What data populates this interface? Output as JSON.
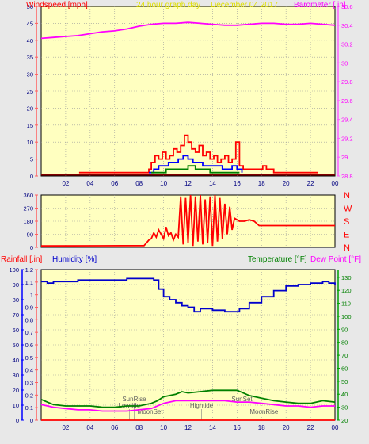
{
  "chart_data": [
    {
      "type": "line",
      "header": {
        "left": "Windspeed [mph]",
        "center": "24 hour graph day",
        "date": "December 04 2017",
        "right": "Barometer [ in]"
      },
      "x_ticks": [
        "02",
        "04",
        "06",
        "08",
        "10",
        "12",
        "14",
        "16",
        "18",
        "20",
        "22",
        "00"
      ],
      "y_left_ticks": [
        "0",
        "5",
        "10",
        "15",
        "20",
        "25",
        "30",
        "35",
        "40",
        "45",
        "50"
      ],
      "y_right_ticks": [
        "28.8",
        "29",
        "29.2",
        "29.4",
        "29.6",
        "29.8",
        "30",
        "30.2",
        "30.4",
        "30.6"
      ],
      "ylim_left": [
        0,
        50
      ],
      "ylim_right": [
        28.8,
        30.6
      ],
      "series": [
        {
          "role": "barometer",
          "color": "#ff00ff",
          "axis": "right",
          "x": [
            0,
            1,
            2,
            3,
            4,
            5,
            6,
            7,
            8,
            9,
            10,
            11,
            12,
            13,
            14,
            15,
            16,
            17,
            18,
            19,
            20,
            21,
            22,
            23,
            24
          ],
          "y": [
            30.26,
            30.27,
            30.28,
            30.29,
            30.31,
            30.33,
            30.34,
            30.36,
            30.39,
            30.41,
            30.42,
            30.42,
            30.43,
            30.42,
            30.41,
            30.4,
            30.4,
            30.41,
            30.42,
            30.42,
            30.41,
            30.41,
            30.42,
            30.41,
            30.4
          ]
        },
        {
          "role": "wind-gust",
          "color": "#ff0000",
          "axis": "left",
          "x": [
            3.1,
            8.8,
            9.0,
            9.3,
            9.6,
            9.9,
            10.2,
            10.5,
            10.8,
            11.1,
            11.4,
            11.7,
            12.0,
            12.3,
            12.6,
            12.9,
            13.2,
            13.5,
            13.8,
            14.1,
            14.4,
            14.7,
            15.0,
            15.3,
            15.6,
            15.9,
            16.2,
            16.5,
            17.8,
            18.1,
            18.4,
            19.0,
            19.6,
            20.2,
            22.6
          ],
          "y": [
            1,
            2,
            4,
            6,
            5,
            7,
            5,
            6,
            8,
            7,
            9,
            12,
            10,
            8,
            7,
            9,
            6,
            7,
            5,
            6,
            4,
            5,
            6,
            4,
            5,
            10,
            3,
            2,
            2,
            3,
            2,
            1,
            1,
            1,
            1
          ]
        },
        {
          "role": "wind-avg",
          "color": "#0000ff",
          "axis": "left",
          "x": [
            8.8,
            9.2,
            9.6,
            10.0,
            10.4,
            10.8,
            11.2,
            11.6,
            12.0,
            12.4,
            12.8,
            13.2,
            13.6,
            14.0,
            14.4,
            14.8,
            15.2,
            15.6,
            16.0,
            16.4
          ],
          "y": [
            1,
            2,
            3,
            3,
            4,
            4,
            5,
            6,
            5,
            4,
            4,
            3,
            3,
            3,
            3,
            2,
            2,
            3,
            2,
            1
          ]
        },
        {
          "role": "wind-low",
          "color": "#008000",
          "axis": "left",
          "x": [
            9.0,
            9.6,
            10.2,
            10.8,
            11.4,
            12.0,
            12.6,
            13.2,
            13.8,
            14.4,
            15.0,
            15.6,
            16.2
          ],
          "y": [
            1,
            1,
            2,
            2,
            2,
            3,
            2,
            2,
            1,
            1,
            1,
            1,
            1
          ]
        }
      ]
    },
    {
      "type": "line",
      "y_left_ticks": [
        "0",
        "90",
        "180",
        "270",
        "360"
      ],
      "y_right_labels": [
        "N",
        "W",
        "S",
        "E",
        "N"
      ],
      "ylim": [
        0,
        360
      ],
      "series": [
        {
          "role": "wind-direction",
          "color": "#ff0000",
          "x": [
            0,
            8.4,
            8.6,
            8.8,
            9.0,
            9.2,
            9.4,
            9.6,
            9.8,
            10.0,
            10.2,
            10.4,
            10.6,
            10.8,
            11.0,
            11.2,
            11.4,
            11.6,
            11.8,
            12.0,
            12.2,
            12.4,
            12.6,
            12.8,
            13.0,
            13.2,
            13.4,
            13.6,
            13.8,
            14.0,
            14.2,
            14.4,
            14.6,
            14.8,
            15.0,
            15.2,
            15.4,
            15.6,
            15.8,
            16.0,
            16.2,
            16.6,
            17.0,
            17.4,
            17.8,
            24
          ],
          "y": [
            10,
            12,
            30,
            50,
            60,
            100,
            70,
            120,
            90,
            60,
            140,
            80,
            100,
            50,
            90,
            70,
            350,
            20,
            340,
            30,
            360,
            10,
            350,
            40,
            360,
            20,
            330,
            30,
            350,
            10,
            360,
            40,
            340,
            60,
            300,
            90,
            280,
            120,
            200,
            190,
            180,
            180,
            190,
            180,
            150,
            150
          ]
        }
      ]
    },
    {
      "type": "line",
      "header": {
        "rainfall": "Rainfall [.in]",
        "humidity": "Humidity [%]",
        "temperature": "Temperature [°F]",
        "dewpoint": "Dew Point [°F]"
      },
      "x_ticks": [
        "02",
        "04",
        "06",
        "08",
        "10",
        "12",
        "14",
        "16",
        "18",
        "20",
        "22",
        "00"
      ],
      "y_rain_ticks": [
        "0",
        "0.1",
        "0.2",
        "0.3",
        "0.4",
        "0.5",
        "0.6",
        "0.7",
        "0.8",
        "0.9",
        "1",
        "1.1",
        "1.2"
      ],
      "y_humidity_ticks": [
        "0",
        "10",
        "20",
        "30",
        "40",
        "50",
        "60",
        "70",
        "80",
        "90",
        "100"
      ],
      "y_temp_ticks": [
        "20",
        "30",
        "40",
        "50",
        "60",
        "70",
        "80",
        "90",
        "100",
        "110",
        "120",
        "130"
      ],
      "ylim_temp": [
        20,
        136
      ],
      "ylim_humidity": [
        0,
        100
      ],
      "annotations": [
        {
          "label": "SunRise",
          "x": 7.6,
          "row": 1
        },
        {
          "label": "Lowtide",
          "x": 7.2,
          "row": 2
        },
        {
          "label": "MoonSet",
          "x": 8.9,
          "row": 3
        },
        {
          "label": "Hightide",
          "x": 13.1,
          "row": 2
        },
        {
          "label": "SunSet",
          "x": 16.4,
          "row": 1
        },
        {
          "label": "MoonRise",
          "x": 18.2,
          "row": 3
        }
      ],
      "series": [
        {
          "role": "humidity",
          "color": "#0000cc",
          "axis": "humidity",
          "x": [
            0,
            0.5,
            1,
            2,
            3,
            4,
            5,
            6,
            7,
            8,
            8.6,
            9.2,
            9.6,
            10,
            10.5,
            11,
            11.5,
            12,
            12.5,
            13,
            14,
            15,
            15.8,
            16.2,
            17,
            18,
            19,
            20,
            21,
            22,
            23,
            23.5,
            24
          ],
          "y": [
            92,
            91,
            92,
            92,
            93,
            93,
            93,
            93,
            94,
            94,
            94,
            93,
            87,
            82,
            80,
            78,
            76,
            75,
            72,
            74,
            73,
            72,
            72,
            74,
            78,
            82,
            86,
            89,
            90,
            91,
            92,
            91,
            90
          ]
        },
        {
          "role": "temperature",
          "color": "#008000",
          "axis": "temp",
          "x": [
            0,
            0.5,
            1,
            2,
            3,
            4,
            5,
            6,
            7,
            8,
            9,
            9.5,
            10,
            11,
            11.5,
            12,
            13,
            14,
            15,
            16,
            16.5,
            17,
            18,
            19,
            20,
            21,
            22,
            23,
            24
          ],
          "y": [
            36,
            34,
            32,
            31,
            31,
            31,
            30,
            30,
            31,
            31,
            33,
            35,
            38,
            40,
            42,
            41,
            42,
            43,
            43,
            43,
            41,
            39,
            37,
            35,
            34,
            33,
            33,
            35,
            34
          ]
        },
        {
          "role": "dewpoint",
          "color": "#ff00ff",
          "axis": "temp",
          "x": [
            0,
            1,
            2,
            3,
            4,
            5,
            6,
            7,
            8,
            9,
            10,
            11,
            12,
            13,
            14,
            15,
            16,
            17,
            18,
            19,
            20,
            21,
            22,
            23,
            24
          ],
          "y": [
            32,
            30,
            29,
            28,
            28,
            27,
            27,
            27,
            28,
            29,
            33,
            35,
            35,
            35,
            35,
            35,
            34,
            34,
            33,
            32,
            31,
            31,
            30,
            31,
            31
          ]
        },
        {
          "role": "rainfall",
          "color": "#ff0000",
          "axis": "rain",
          "x": [
            0,
            24
          ],
          "y": [
            0,
            0
          ]
        }
      ]
    }
  ]
}
